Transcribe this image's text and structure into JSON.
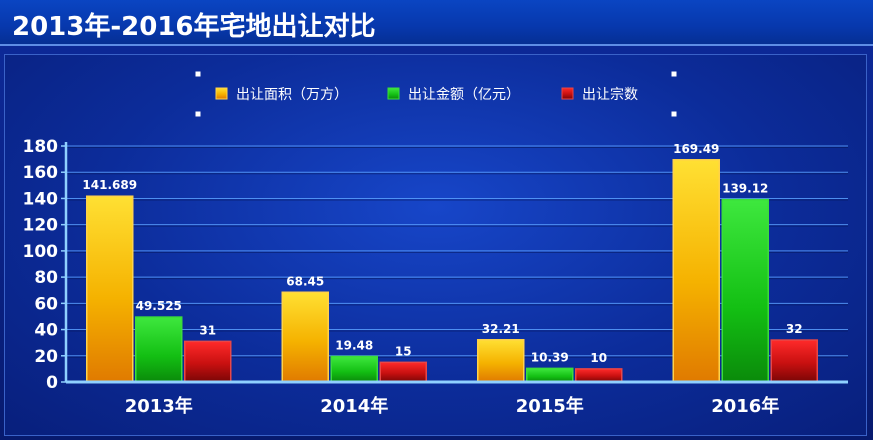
{
  "title": "2013年-2016年宅地出让对比",
  "colors": {
    "background": "#0a2286",
    "title_bar": "#0738ad",
    "gridline": "#5aa0ff",
    "axis": "#8fd0ff",
    "text": "#ffffff"
  },
  "chart_data": {
    "type": "bar",
    "title": "",
    "xlabel": "",
    "ylabel": "",
    "categories": [
      "2013年",
      "2014年",
      "2015年",
      "2016年"
    ],
    "ylim": [
      0,
      180
    ],
    "yticks": [
      0,
      20,
      40,
      60,
      80,
      100,
      120,
      140,
      160,
      180
    ],
    "grid": true,
    "legend_position": "top-center",
    "series": [
      {
        "name": "出让面积（万方）",
        "values": [
          141.689,
          68.45,
          32.21,
          169.49
        ],
        "labels": [
          "141.689",
          "68.45",
          "32.21",
          "169.49"
        ],
        "color": "#f5a800"
      },
      {
        "name": "出让金额（亿元）",
        "values": [
          49.525,
          19.48,
          10.39,
          139.12
        ],
        "labels": [
          "49.525",
          "19.48",
          "10.39",
          "139.12"
        ],
        "color": "#1fc81f"
      },
      {
        "name": "出让宗数",
        "values": [
          31,
          15,
          10,
          32
        ],
        "labels": [
          "31",
          "15",
          "10",
          "32"
        ],
        "color": "#cc1010"
      }
    ]
  }
}
